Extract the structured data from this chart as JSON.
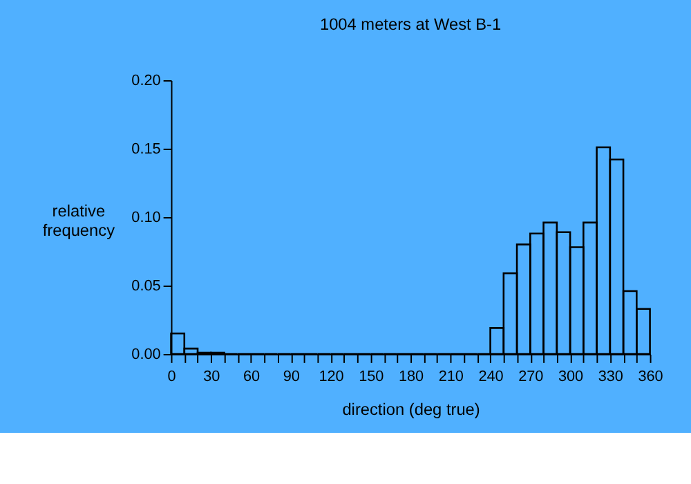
{
  "chart_data": {
    "type": "histogram",
    "title": "1004 meters at West B-1",
    "xlabel": "direction (deg true)",
    "ylabel": "relative frequency",
    "bins": [
      0,
      10,
      20,
      30,
      40,
      50,
      60,
      70,
      80,
      90,
      100,
      110,
      120,
      130,
      140,
      150,
      160,
      170,
      180,
      190,
      200,
      210,
      220,
      230,
      240,
      250,
      260,
      270,
      280,
      290,
      300,
      310,
      320,
      330,
      340,
      350,
      360
    ],
    "values": [
      0.015,
      0.004,
      0.001,
      0.001,
      0,
      0,
      0,
      0,
      0,
      0,
      0,
      0,
      0,
      0,
      0,
      0,
      0,
      0,
      0,
      0,
      0,
      0,
      0,
      0,
      0.019,
      0.059,
      0.08,
      0.088,
      0.096,
      0.089,
      0.078,
      0.096,
      0.151,
      0.142,
      0.046,
      0.033
    ],
    "color": "#000000",
    "xlim": [
      0,
      360
    ],
    "ylim": [
      0,
      0.2
    ],
    "xticks": [
      0,
      {
        "value": 10,
        "label": null
      },
      {
        "value": 20,
        "label": null
      },
      30,
      {
        "value": 40,
        "label": null
      },
      {
        "value": 50,
        "label": null
      },
      60,
      {
        "value": 70,
        "label": null
      },
      {
        "value": 80,
        "label": null
      },
      90,
      {
        "value": 100,
        "label": null
      },
      {
        "value": 110,
        "label": null
      },
      120,
      {
        "value": 130,
        "label": null
      },
      {
        "value": 140,
        "label": null
      },
      150,
      {
        "value": 160,
        "label": null
      },
      {
        "value": 170,
        "label": null
      },
      180,
      {
        "value": 190,
        "label": null
      },
      {
        "value": 200,
        "label": null
      },
      210,
      {
        "value": 220,
        "label": null
      },
      {
        "value": 230,
        "label": null
      },
      240,
      {
        "value": 250,
        "label": null
      },
      {
        "value": 260,
        "label": null
      },
      270,
      {
        "value": 280,
        "label": null
      },
      {
        "value": 290,
        "label": null
      },
      300,
      {
        "value": 310,
        "label": null
      },
      {
        "value": 320,
        "label": null
      },
      330,
      {
        "value": 340,
        "label": null
      },
      {
        "value": 350,
        "label": null
      },
      360
    ],
    "yticks": [
      {
        "value": 0,
        "label": "0.00"
      },
      {
        "value": 0.05,
        "label": "0.05"
      },
      {
        "value": 0.1,
        "label": "0.10"
      },
      {
        "value": 0.15,
        "label": "0.15"
      },
      {
        "value": 0.2,
        "label": "0.20"
      }
    ],
    "grid": false
  }
}
